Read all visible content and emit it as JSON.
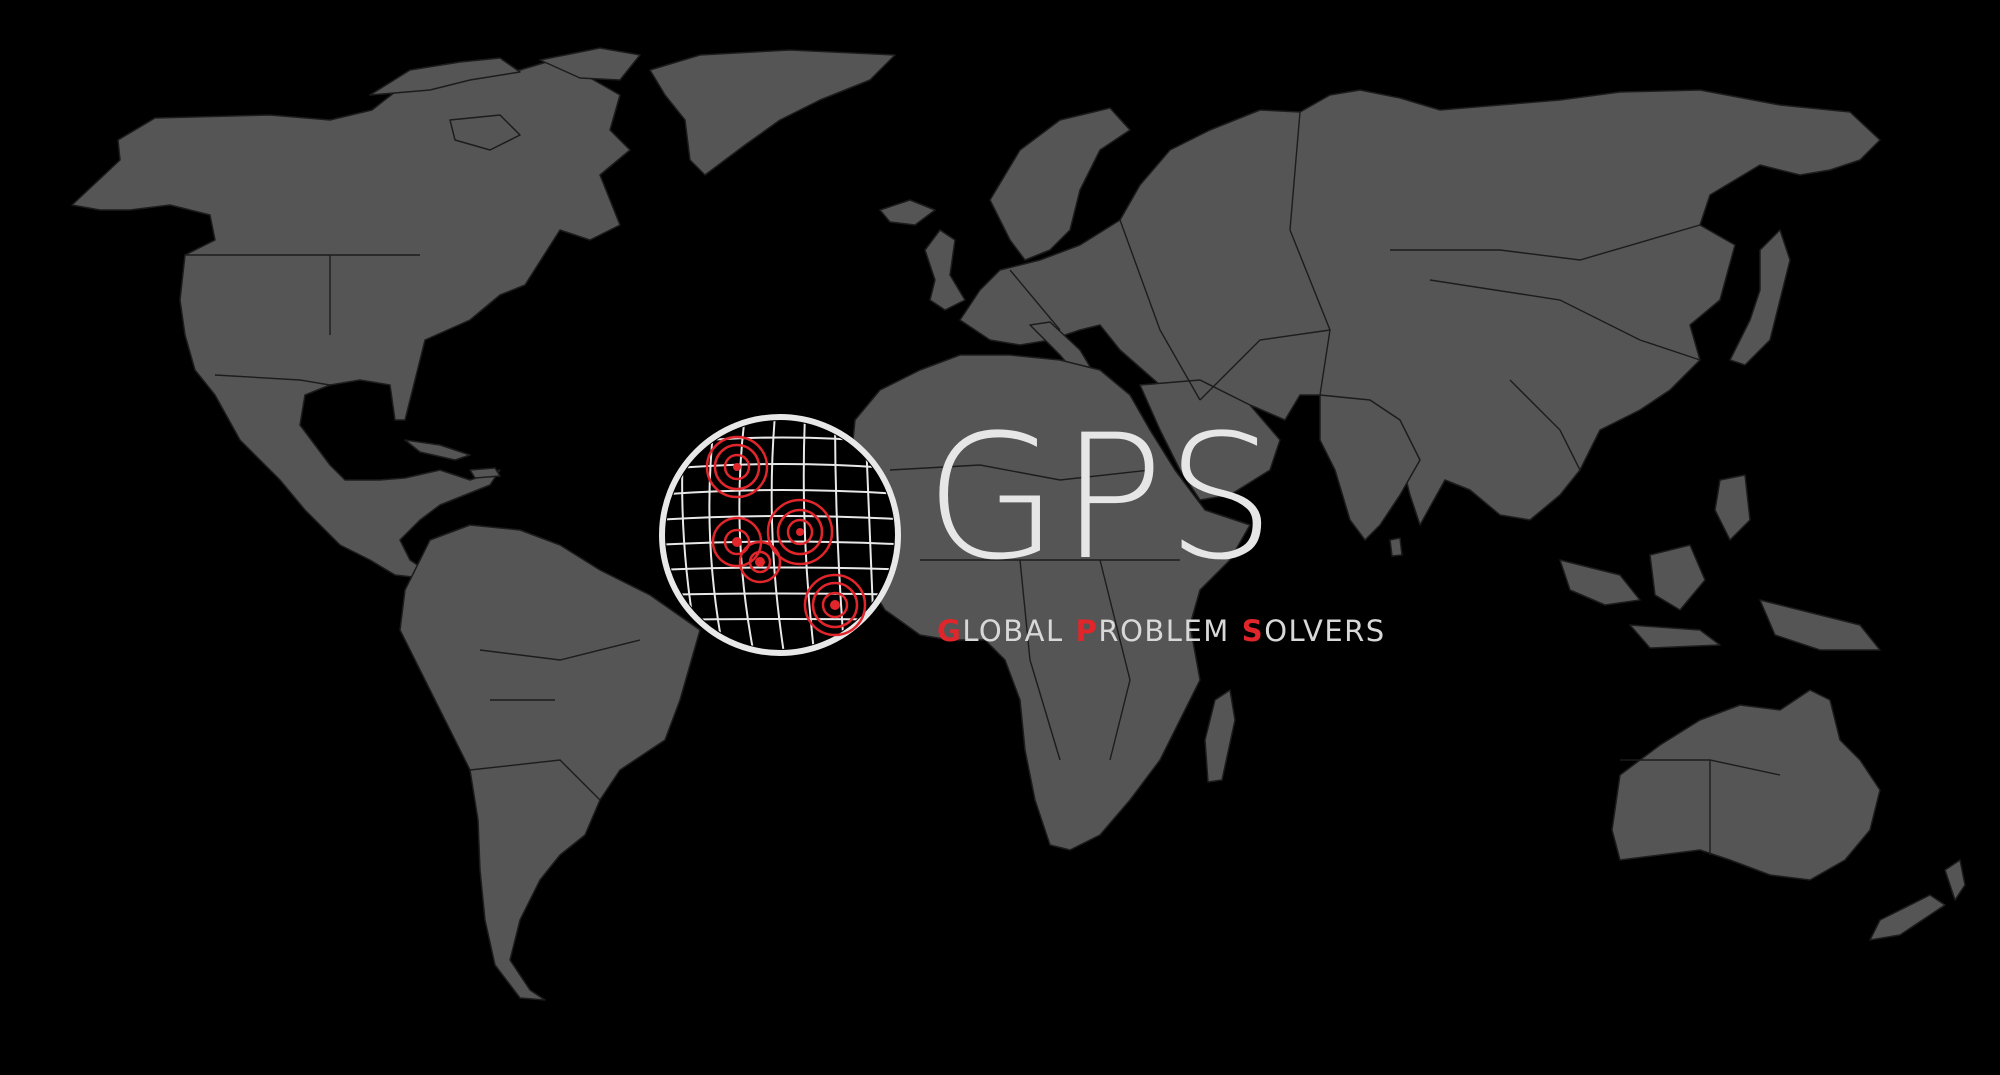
{
  "logo": {
    "wordmark": "GPS",
    "tagline": [
      {
        "initial": "G",
        "rest": "LOBAL"
      },
      {
        "initial": "P",
        "rest": "ROBLEM"
      },
      {
        "initial": "S",
        "rest": "OLVERS"
      }
    ],
    "globe_icon": "globe-with-target-rings-icon"
  },
  "colors": {
    "background": "#000000",
    "land": "#555555",
    "border": "#1c1c1c",
    "wordmark": "#e6e6e6",
    "accent_red": "#e0262b"
  }
}
